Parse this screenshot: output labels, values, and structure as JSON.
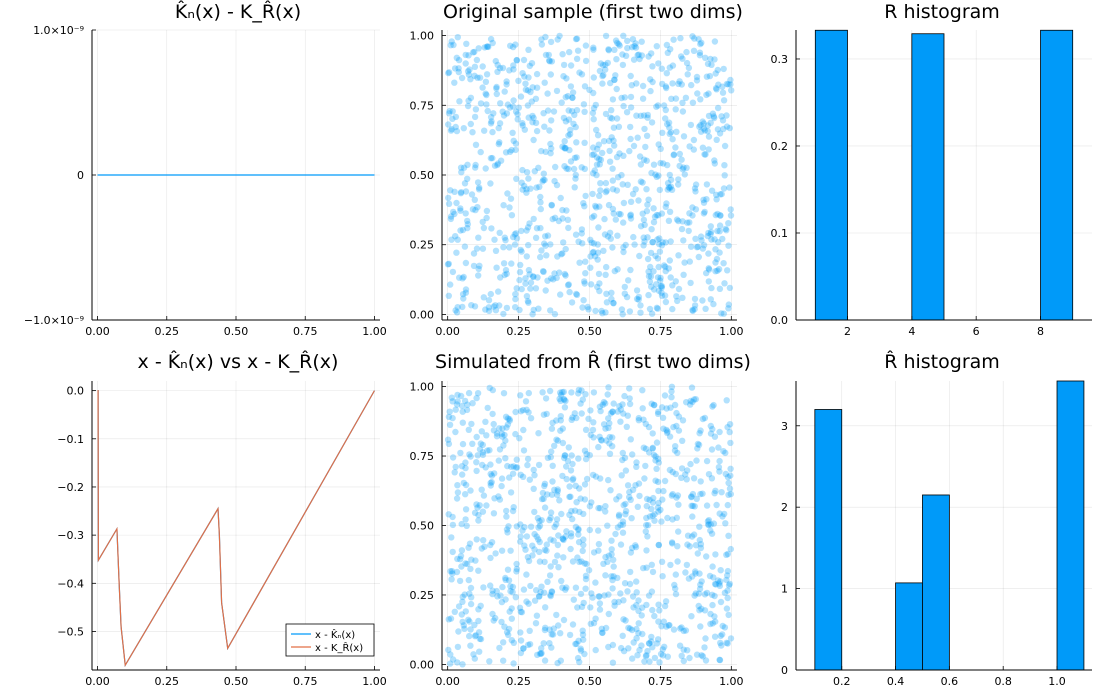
{
  "colors": {
    "blue": "#009af9",
    "orange": "#e26f46"
  },
  "chart_data": [
    {
      "type": "line",
      "title": "K̂ₙ(x) - K_R̂(x)",
      "xlim": [
        -0.02,
        1.02
      ],
      "ylim": [
        -1e-09,
        1e-09
      ],
      "xticks": [
        0,
        0.25,
        0.5,
        0.75,
        1
      ],
      "xtick_labels": [
        "0.00",
        "0.25",
        "0.50",
        "0.75",
        "1.00"
      ],
      "yticks": [
        -1e-09,
        0,
        1e-09
      ],
      "ytick_labels": [
        "−1.0×10⁻⁹",
        "0",
        "1.0×10⁻⁹"
      ],
      "grid": true,
      "legend": "none",
      "series": [
        {
          "color": "#009af9",
          "x": [
            0,
            1
          ],
          "y": [
            0,
            0
          ]
        }
      ]
    },
    {
      "type": "scatter",
      "title": "Original sample (first two dims)",
      "xlim": [
        -0.02,
        1.02
      ],
      "ylim": [
        -0.02,
        1.02
      ],
      "xticks": [
        0,
        0.25,
        0.5,
        0.75,
        1
      ],
      "xtick_labels": [
        "0.00",
        "0.25",
        "0.50",
        "0.75",
        "1.00"
      ],
      "yticks": [
        0,
        0.25,
        0.5,
        0.75,
        1
      ],
      "ytick_labels": [
        "0.00",
        "0.25",
        "0.50",
        "0.75",
        "1.00"
      ],
      "grid": true,
      "legend": "none",
      "n_points": 1000,
      "seed": 12345
    },
    {
      "type": "bar",
      "title": "R histogram",
      "xlim": [
        0.4,
        9.6
      ],
      "ylim": [
        0,
        0.3333
      ],
      "xticks": [
        2,
        4,
        6,
        8
      ],
      "xtick_labels": [
        "2",
        "4",
        "6",
        "8"
      ],
      "yticks": [
        0,
        0.1,
        0.2,
        0.3
      ],
      "ytick_labels": [
        "0.0",
        "0.1",
        "0.2",
        "0.3"
      ],
      "grid": true,
      "legend": "none",
      "bin_edges": [
        1,
        2,
        3,
        4,
        5,
        6,
        7,
        8,
        9
      ],
      "values": [
        0.333,
        0,
        0,
        0.329,
        0,
        0,
        0,
        0.333
      ]
    },
    {
      "type": "line",
      "title": "x - K̂ₙ(x) vs x - K_R̂(x)",
      "xlim": [
        -0.02,
        1.02
      ],
      "ylim": [
        -0.58,
        0.02
      ],
      "xticks": [
        0,
        0.25,
        0.5,
        0.75,
        1
      ],
      "xtick_labels": [
        "0.00",
        "0.25",
        "0.50",
        "0.75",
        "1.00"
      ],
      "yticks": [
        0,
        -0.1,
        -0.2,
        -0.3,
        -0.4,
        -0.5
      ],
      "ytick_labels": [
        "0.0",
        "−0.1",
        "−0.2",
        "−0.3",
        "−0.4",
        "−0.5"
      ],
      "grid": true,
      "legend": "bottom-right",
      "series": [
        {
          "name": "x - K̂ₙ(x)",
          "color": "#009af9",
          "x": [
            0,
            0.002,
            0.003,
            0.07,
            0.078,
            0.085,
            0.1,
            0.435,
            0.44,
            0.448,
            0.47,
            1.0
          ],
          "y": [
            0,
            0,
            -0.352,
            -0.287,
            -0.4,
            -0.49,
            -0.57,
            -0.245,
            -0.3,
            -0.44,
            -0.535,
            0
          ]
        },
        {
          "name": "x - K_R̂(x)",
          "color": "#e26f46",
          "x": [
            0,
            0.002,
            0.003,
            0.07,
            0.078,
            0.085,
            0.1,
            0.435,
            0.44,
            0.448,
            0.47,
            1.0
          ],
          "y": [
            0,
            0,
            -0.352,
            -0.287,
            -0.4,
            -0.49,
            -0.57,
            -0.245,
            -0.3,
            -0.44,
            -0.535,
            0
          ]
        }
      ]
    },
    {
      "type": "scatter",
      "title": "Simulated from R̂ (first two dims)",
      "xlim": [
        -0.02,
        1.02
      ],
      "ylim": [
        -0.02,
        1.02
      ],
      "xticks": [
        0,
        0.25,
        0.5,
        0.75,
        1
      ],
      "xtick_labels": [
        "0.00",
        "0.25",
        "0.50",
        "0.75",
        "1.00"
      ],
      "yticks": [
        0,
        0.25,
        0.5,
        0.75,
        1
      ],
      "ytick_labels": [
        "0.00",
        "0.25",
        "0.50",
        "0.75",
        "1.00"
      ],
      "grid": true,
      "legend": "none",
      "n_points": 1000,
      "seed": 67890
    },
    {
      "type": "bar",
      "title": "R̂ histogram",
      "xlim": [
        0.03,
        1.13
      ],
      "ylim": [
        0,
        3.55
      ],
      "xticks": [
        0.2,
        0.4,
        0.6,
        0.8,
        1.0
      ],
      "xtick_labels": [
        "0.2",
        "0.4",
        "0.6",
        "0.8",
        "1.0"
      ],
      "yticks": [
        0,
        1,
        2,
        3
      ],
      "ytick_labels": [
        "0",
        "1",
        "2",
        "3"
      ],
      "grid": true,
      "legend": "none",
      "bin_edges": [
        0.1,
        0.2,
        0.3,
        0.4,
        0.5,
        0.6,
        0.7,
        0.8,
        0.9,
        1.0,
        1.1
      ],
      "values": [
        3.2,
        0,
        0,
        1.07,
        2.15,
        0,
        0,
        0,
        0,
        3.55
      ]
    }
  ]
}
